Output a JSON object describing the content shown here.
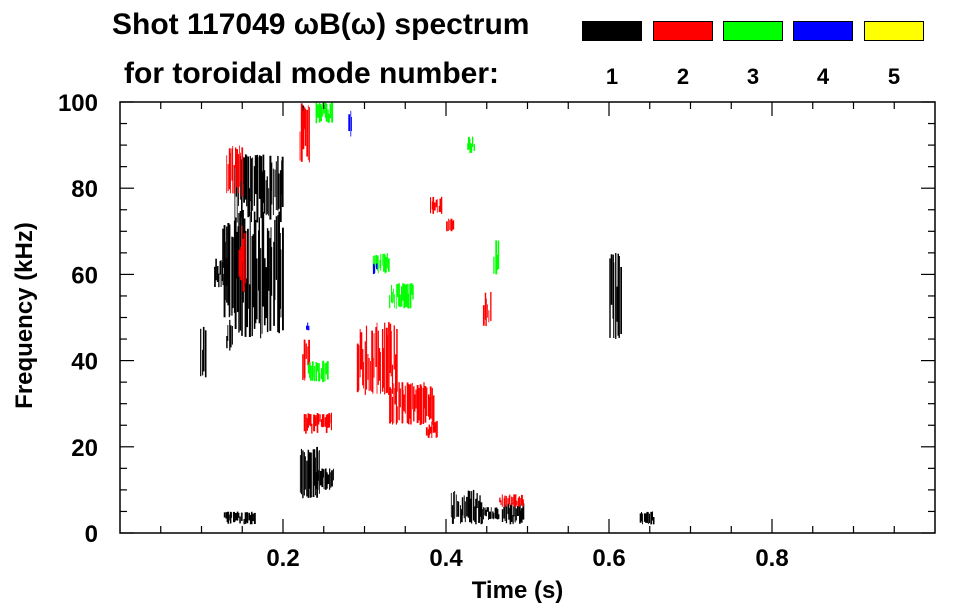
{
  "chart_data": {
    "type": "scatter",
    "title_line_1": "Shot 117049 ωB(ω) spectrum",
    "title_line_2": "for toroidal mode number:",
    "xlabel": "Time (s)",
    "ylabel": "Frequency (kHz)",
    "xlim": [
      0.0,
      1.0
    ],
    "ylim": [
      0,
      100
    ],
    "x_ticks": [
      0.2,
      0.4,
      0.6,
      0.8
    ],
    "x_tick_labels": [
      "0.2",
      "0.4",
      "0.6",
      "0.8"
    ],
    "y_ticks": [
      0,
      20,
      40,
      60,
      80,
      100
    ],
    "y_tick_labels": [
      "0",
      "20",
      "40",
      "60",
      "80",
      "100"
    ],
    "grid": false,
    "legend_position": "top-right",
    "series": [
      {
        "name": "1",
        "color": "#000000",
        "regions": [
          {
            "x": [
              0.098,
              0.105
            ],
            "y": [
              36,
              48
            ]
          },
          {
            "x": [
              0.115,
              0.135
            ],
            "y": [
              57,
              64
            ]
          },
          {
            "x": [
              0.125,
              0.145
            ],
            "y": [
              50,
              73
            ]
          },
          {
            "x": [
              0.14,
              0.2
            ],
            "y": [
              72,
              88
            ]
          },
          {
            "x": [
              0.14,
              0.2
            ],
            "y": [
              45,
              75
            ]
          },
          {
            "x": [
              0.13,
              0.138
            ],
            "y": [
              42,
              50
            ]
          },
          {
            "x": [
              0.222,
              0.225
            ],
            "y": [
              92,
              100
            ]
          },
          {
            "x": [
              0.22,
              0.245
            ],
            "y": [
              8,
              20
            ]
          },
          {
            "x": [
              0.24,
              0.262
            ],
            "y": [
              10,
              15
            ]
          },
          {
            "x": [
              0.127,
              0.165
            ],
            "y": [
              2,
              5
            ]
          },
          {
            "x": [
              0.405,
              0.445
            ],
            "y": [
              2,
              10
            ]
          },
          {
            "x": [
              0.445,
              0.465
            ],
            "y": [
              3,
              6
            ]
          },
          {
            "x": [
              0.468,
              0.495
            ],
            "y": [
              2,
              7
            ]
          },
          {
            "x": [
              0.6,
              0.615
            ],
            "y": [
              45,
              65
            ]
          },
          {
            "x": [
              0.637,
              0.655
            ],
            "y": [
              2,
              5
            ]
          }
        ]
      },
      {
        "name": "2",
        "color": "#ff0000",
        "regions": [
          {
            "x": [
              0.13,
              0.15
            ],
            "y": [
              78,
              90
            ]
          },
          {
            "x": [
              0.145,
              0.155
            ],
            "y": [
              55,
              72
            ]
          },
          {
            "x": [
              0.22,
              0.233
            ],
            "y": [
              86,
              100
            ]
          },
          {
            "x": [
              0.223,
              0.232
            ],
            "y": [
              35,
              45
            ]
          },
          {
            "x": [
              0.225,
              0.26
            ],
            "y": [
              23,
              28
            ]
          },
          {
            "x": [
              0.29,
              0.34
            ],
            "y": [
              32,
              49
            ]
          },
          {
            "x": [
              0.33,
              0.385
            ],
            "y": [
              25,
              35
            ]
          },
          {
            "x": [
              0.375,
              0.39
            ],
            "y": [
              22,
              26
            ]
          },
          {
            "x": [
              0.38,
              0.395
            ],
            "y": [
              74,
              78
            ]
          },
          {
            "x": [
              0.4,
              0.41
            ],
            "y": [
              70,
              73
            ]
          },
          {
            "x": [
              0.445,
              0.455
            ],
            "y": [
              48,
              56
            ]
          },
          {
            "x": [
              0.465,
              0.495
            ],
            "y": [
              6,
              9
            ]
          }
        ]
      },
      {
        "name": "3",
        "color": "#00ff00",
        "regions": [
          {
            "x": [
              0.23,
              0.255
            ],
            "y": [
              35,
              40
            ]
          },
          {
            "x": [
              0.24,
              0.26
            ],
            "y": [
              95,
              100
            ]
          },
          {
            "x": [
              0.31,
              0.33
            ],
            "y": [
              60,
              65
            ]
          },
          {
            "x": [
              0.33,
              0.36
            ],
            "y": [
              52,
              58
            ]
          },
          {
            "x": [
              0.425,
              0.435
            ],
            "y": [
              88,
              92
            ]
          },
          {
            "x": [
              0.458,
              0.465
            ],
            "y": [
              60,
              68
            ]
          }
        ]
      },
      {
        "name": "4",
        "color": "#0000ff",
        "regions": [
          {
            "x": [
              0.28,
              0.285
            ],
            "y": [
              92,
              98
            ]
          },
          {
            "x": [
              0.31,
              0.315
            ],
            "y": [
              60,
              63
            ]
          },
          {
            "x": [
              0.228,
              0.232
            ],
            "y": [
              47,
              49
            ]
          }
        ]
      },
      {
        "name": "5",
        "color": "#ffff00",
        "regions": []
      }
    ]
  }
}
